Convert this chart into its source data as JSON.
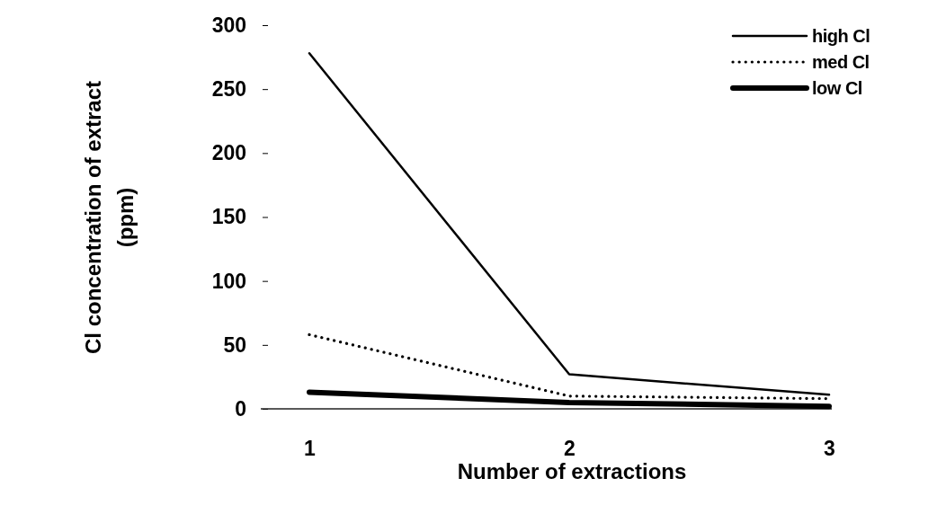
{
  "chart_data": {
    "type": "line",
    "xlabel": "Number of extractions",
    "ylabel": "Cl concentration of extract\n(ppm)",
    "categories": [
      "1",
      "2",
      "3"
    ],
    "series": [
      {
        "name": "high Cl",
        "color": "#000000",
        "line_style": "solid",
        "values": [
          278,
          27,
          11
        ]
      },
      {
        "name": "med Cl",
        "color": "#000000",
        "line_style": "dotted",
        "values": [
          58,
          10,
          8
        ]
      },
      {
        "name": "low Cl",
        "color": "#000000",
        "line_style": "solid",
        "values": [
          13,
          5,
          2
        ]
      }
    ],
    "ylim": [
      0,
      300
    ],
    "yticks": [
      0,
      50,
      100,
      150,
      200,
      250,
      300
    ],
    "grid": false,
    "legend": "top right",
    "marker": "none"
  }
}
